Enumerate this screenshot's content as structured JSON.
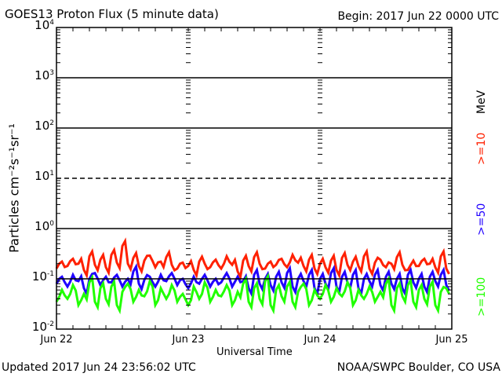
{
  "chart_data": {
    "type": "line",
    "title": "GOES13 Proton Flux (5 minute data)",
    "begin": "Begin: 2017 Jun 22 0000 UTC",
    "xlabel": "Universal Time",
    "ylabel": "Particles cm⁻²s⁻¹sr⁻¹",
    "y_scale": "log",
    "ylim": [
      0.01,
      10000
    ],
    "y_ticks": [
      {
        "base": "10",
        "exp": "4"
      },
      {
        "base": "10",
        "exp": "3"
      },
      {
        "base": "10",
        "exp": "2"
      },
      {
        "base": "10",
        "exp": "1"
      },
      {
        "base": "10",
        "exp": "0"
      },
      {
        "base": "10",
        "exp": "-1"
      },
      {
        "base": "10",
        "exp": "-2"
      }
    ],
    "x_ticks": [
      "Jun 22",
      "Jun 23",
      "Jun 24",
      "Jun 25"
    ],
    "x_unit": "hours since Jun 22 0000 UTC (hourly samples)",
    "reference_lines": {
      "solid": [
        1000,
        100,
        1,
        0.1
      ],
      "dashed": [
        10
      ]
    },
    "series_unit_label": "MeV",
    "series": [
      {
        "name": ">=10",
        "color": "#ff2000",
        "values": [
          0.16,
          0.22,
          0.18,
          0.25,
          0.2,
          0.15,
          0.28,
          0.19,
          0.24,
          0.17,
          0.3,
          0.21,
          0.45,
          0.2,
          0.26,
          0.18,
          0.23,
          0.29,
          0.17,
          0.22,
          0.27,
          0.19,
          0.16,
          0.21,
          0.18,
          0.15,
          0.22,
          0.2,
          0.17,
          0.24,
          0.16,
          0.28,
          0.19,
          0.14,
          0.23,
          0.18,
          0.27,
          0.2,
          0.16,
          0.22,
          0.19,
          0.25,
          0.17,
          0.3,
          0.21,
          0.18,
          0.24,
          0.16,
          0.2,
          0.17,
          0.23,
          0.15,
          0.26,
          0.19,
          0.22,
          0.18,
          0.28,
          0.16,
          0.21,
          0.24,
          0.17,
          0.2,
          0.27,
          0.19,
          0.15,
          0.23,
          0.18,
          0.25,
          0.2,
          0.17,
          0.28,
          0.16
        ]
      },
      {
        "name": ">=50",
        "color": "#2000ff",
        "values": [
          0.08,
          0.11,
          0.07,
          0.12,
          0.09,
          0.065,
          0.1,
          0.13,
          0.075,
          0.11,
          0.085,
          0.12,
          0.07,
          0.1,
          0.14,
          0.08,
          0.095,
          0.11,
          0.07,
          0.12,
          0.09,
          0.13,
          0.075,
          0.1,
          0.065,
          0.11,
          0.08,
          0.12,
          0.07,
          0.1,
          0.085,
          0.13,
          0.07,
          0.11,
          0.09,
          0.065,
          0.12,
          0.08,
          0.1,
          0.075,
          0.11,
          0.085,
          0.13,
          0.07,
          0.1,
          0.09,
          0.12,
          0.065,
          0.1,
          0.08,
          0.13,
          0.07,
          0.11,
          0.085,
          0.12,
          0.065,
          0.1,
          0.09,
          0.12,
          0.075,
          0.11,
          0.08,
          0.1,
          0.065,
          0.12,
          0.085,
          0.1,
          0.07,
          0.11,
          0.09,
          0.12,
          0.075
        ]
      },
      {
        "name": ">=100",
        "color": "#20ff00",
        "values": [
          0.035,
          0.06,
          0.04,
          0.075,
          0.03,
          0.05,
          0.085,
          0.035,
          0.065,
          0.04,
          0.07,
          0.03,
          0.055,
          0.08,
          0.035,
          0.06,
          0.045,
          0.09,
          0.03,
          0.065,
          0.04,
          0.075,
          0.035,
          0.05,
          0.03,
          0.07,
          0.04,
          0.085,
          0.035,
          0.06,
          0.045,
          0.075,
          0.03,
          0.055,
          0.08,
          0.035,
          0.065,
          0.04,
          0.09,
          0.03,
          0.06,
          0.045,
          0.07,
          0.035,
          0.055,
          0.08,
          0.03,
          0.06,
          0.04,
          0.075,
          0.035,
          0.065,
          0.045,
          0.085,
          0.03,
          0.06,
          0.04,
          0.07,
          0.035,
          0.055,
          0.08,
          0.03,
          0.065,
          0.045,
          0.075,
          0.035,
          0.06,
          0.04,
          0.07,
          0.03,
          0.055,
          0.065
        ]
      }
    ]
  },
  "footer": {
    "updated": "Updated 2017 Jun 24 23:56:02 UTC",
    "credit": "NOAA/SWPC Boulder, CO USA"
  }
}
